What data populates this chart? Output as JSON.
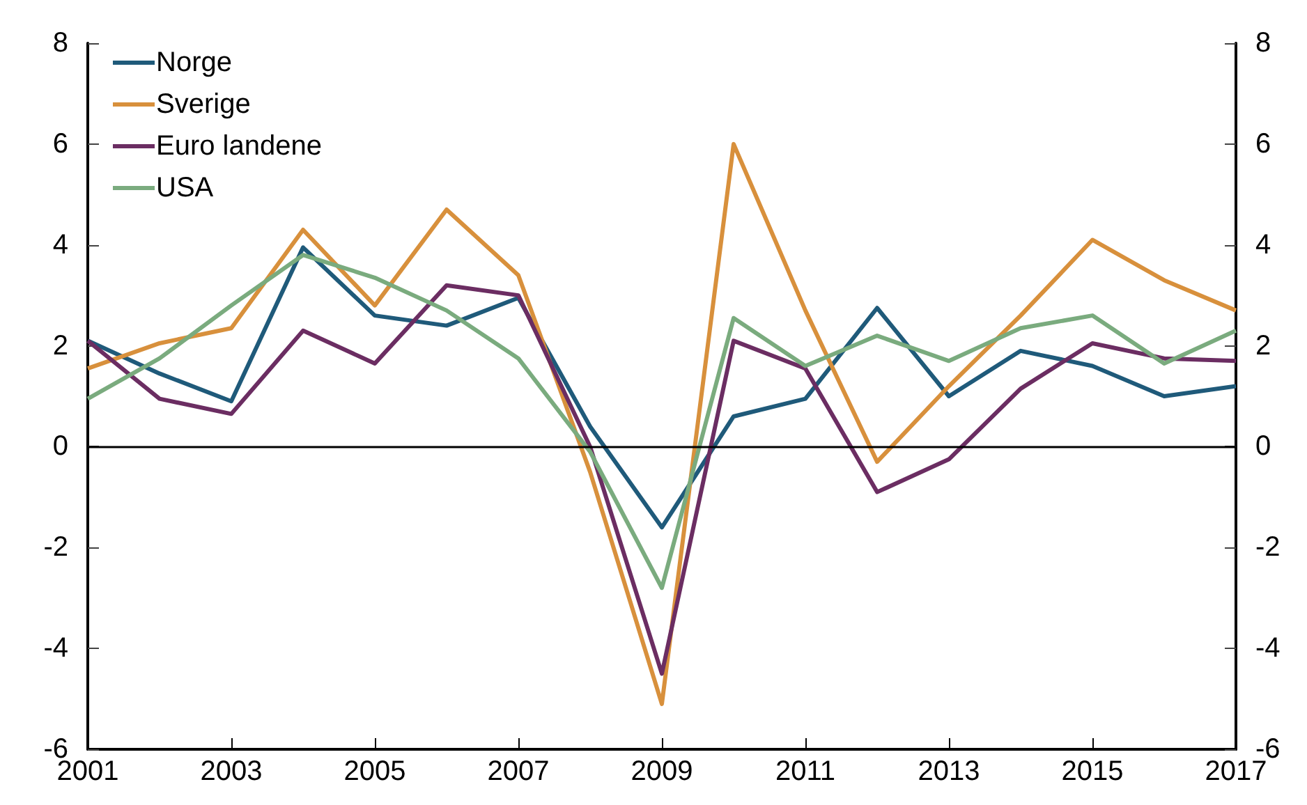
{
  "chart_data": {
    "type": "line",
    "x": [
      2001,
      2002,
      2003,
      2004,
      2005,
      2006,
      2007,
      2008,
      2009,
      2010,
      2011,
      2012,
      2013,
      2014,
      2015,
      2016,
      2017
    ],
    "series": [
      {
        "name": "Norge",
        "color": "#1f5a7a",
        "values": [
          2.1,
          1.45,
          0.9,
          3.95,
          2.6,
          2.4,
          2.95,
          0.4,
          -1.6,
          0.6,
          0.95,
          2.75,
          1.0,
          1.9,
          1.6,
          1.0,
          1.2
        ]
      },
      {
        "name": "Sverige",
        "color": "#d8903c",
        "values": [
          1.55,
          2.05,
          2.35,
          4.3,
          2.8,
          4.7,
          3.4,
          -0.5,
          -5.1,
          6.0,
          2.7,
          -0.3,
          1.2,
          2.6,
          4.1,
          3.3,
          2.7
        ]
      },
      {
        "name": "Euro landene",
        "color": "#6b2d62",
        "values": [
          2.1,
          0.95,
          0.65,
          2.3,
          1.65,
          3.2,
          3.0,
          0.0,
          -4.5,
          2.1,
          1.55,
          -0.9,
          -0.25,
          1.15,
          2.05,
          1.75,
          1.7
        ]
      },
      {
        "name": "USA",
        "color": "#7aab7e",
        "values": [
          0.95,
          1.75,
          2.8,
          3.8,
          3.35,
          2.7,
          1.75,
          -0.1,
          -2.8,
          2.55,
          1.6,
          2.2,
          1.7,
          2.35,
          2.6,
          1.65,
          2.3
        ]
      }
    ],
    "xlim": [
      2001,
      2017
    ],
    "xticks": [
      2001,
      2003,
      2005,
      2007,
      2009,
      2011,
      2013,
      2015,
      2017
    ],
    "ylim": [
      -6,
      8
    ],
    "yticks": [
      -6,
      -4,
      -2,
      0,
      2,
      4,
      6,
      8
    ],
    "y2lim": [
      -6,
      8
    ],
    "y2ticks": [
      -6,
      -4,
      -2,
      0,
      2,
      4,
      6,
      8
    ],
    "ref_lines": [
      {
        "axis": "y",
        "value": 0,
        "color": "#000000"
      }
    ],
    "grid": false,
    "legend": "top left",
    "marker": "none",
    "line_style": "solid"
  }
}
